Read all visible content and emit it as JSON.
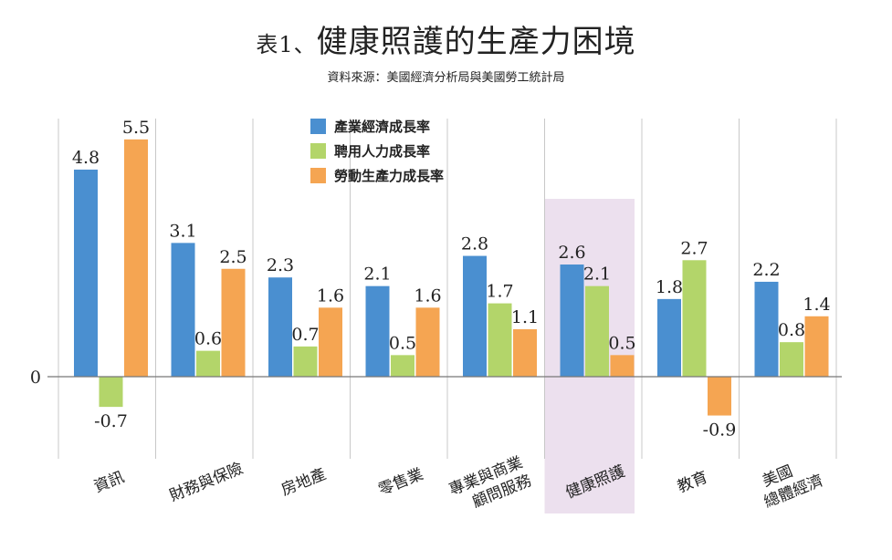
{
  "title_prefix": "表1、",
  "title": "健康照護的生產力困境",
  "subtitle": "資料來源：美國經濟分析局與美國勞工統計局",
  "chart_data": {
    "type": "bar",
    "categories": [
      [
        "資訊"
      ],
      [
        "財務與保險"
      ],
      [
        "房地產"
      ],
      [
        "零售業"
      ],
      [
        "專業與商業",
        "顧問服務"
      ],
      [
        "健康照護"
      ],
      [
        "教育"
      ],
      [
        "美國",
        "總體經濟"
      ]
    ],
    "series": [
      {
        "name": "產業經濟成長率",
        "color": "#4a8fd0",
        "values": [
          4.8,
          3.1,
          2.3,
          2.1,
          2.8,
          2.6,
          1.8,
          2.2
        ]
      },
      {
        "name": "聘用人力成長率",
        "color": "#b3d56a",
        "values": [
          -0.7,
          0.6,
          0.7,
          0.5,
          1.7,
          2.1,
          2.7,
          0.8
        ]
      },
      {
        "name": "勞動生產力成長率",
        "color": "#f5a552",
        "values": [
          5.5,
          2.5,
          1.6,
          1.6,
          1.1,
          0.5,
          -0.9,
          1.4
        ]
      }
    ],
    "value_labels": [
      [
        "4.8",
        "3.1",
        "2.3",
        "2.1",
        "2.8",
        "2.6",
        "1.8",
        "2.2"
      ],
      [
        "-0.7",
        "0.6",
        "0.7",
        "0.5",
        "1.7",
        "2.1",
        "2.7",
        "0.8"
      ],
      [
        "5.5",
        "2.5",
        "1.6",
        "1.6",
        "1.1",
        "0.5",
        "-0.9",
        "1.4"
      ]
    ],
    "ytick_labels": [
      "0"
    ],
    "highlight_category_index": 5,
    "highlight_color": "#ece0ee",
    "grid_color": "#c8c8c8",
    "ylim": [
      -1.9,
      6.0
    ],
    "legend_position": "top-center"
  }
}
